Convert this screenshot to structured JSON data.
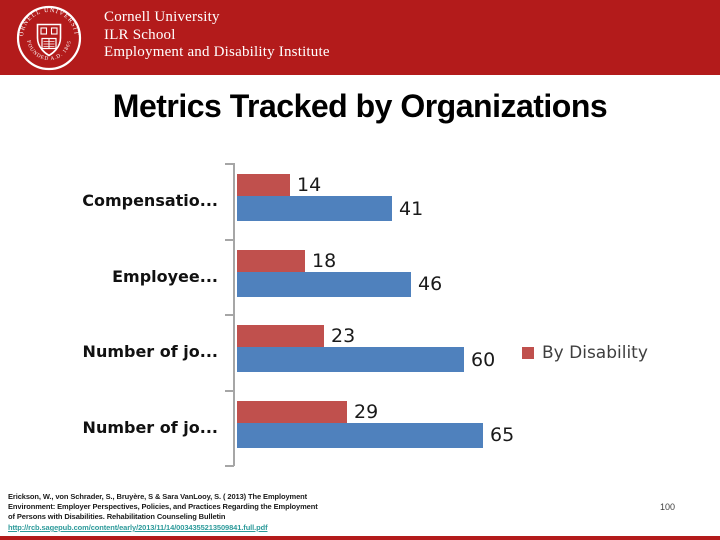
{
  "header": {
    "institution_lines": [
      "Cornell University",
      "ILR School",
      "Employment and Disability Institute"
    ],
    "seal_ring_top": "CORNELL UNIVERSITY",
    "seal_ring_bottom": "FOUNDED A.D. 1865"
  },
  "slide": {
    "title": "Metrics Tracked by Organizations",
    "page_number": "100"
  },
  "chart_data": {
    "type": "bar",
    "orientation": "horizontal",
    "title": "",
    "xlabel": "",
    "ylabel": "",
    "categories": [
      "Compensatio...",
      "Employee...",
      "Number of jo...",
      "Number of jo..."
    ],
    "series": [
      {
        "name": "By Disability",
        "color": "#C0504D",
        "values": [
          14,
          18,
          23,
          29
        ]
      },
      {
        "name": null,
        "color": "#4F81BD",
        "values": [
          41,
          46,
          60,
          65
        ]
      }
    ],
    "xlim": [
      0,
      70
    ],
    "grid": false,
    "data_labels": true,
    "legend": {
      "position": "top-right",
      "entries": [
        {
          "label": "By Disability",
          "color": "#C0504D"
        }
      ]
    }
  },
  "footer": {
    "citation_lines": [
      "Erickson, W., von Schrader, S., Bruyère, S & Sara VanLooy, S. ( 2013) The Employment",
      "Environment: Employer Perspectives, Policies, and Practices Regarding the Employment",
      "of Persons with Disabilities. Rehabilitation Counseling Bulletin"
    ],
    "link": "http://rcb.sagepub.com/content/early/2013/11/14/0034355213509841.full.pdf"
  },
  "colors": {
    "banner_red": "#B31B1B",
    "bar_red": "#C0504D",
    "bar_blue": "#4F81BD",
    "link_teal": "#2E9B9B",
    "axis_gray": "#A6A6A6"
  }
}
